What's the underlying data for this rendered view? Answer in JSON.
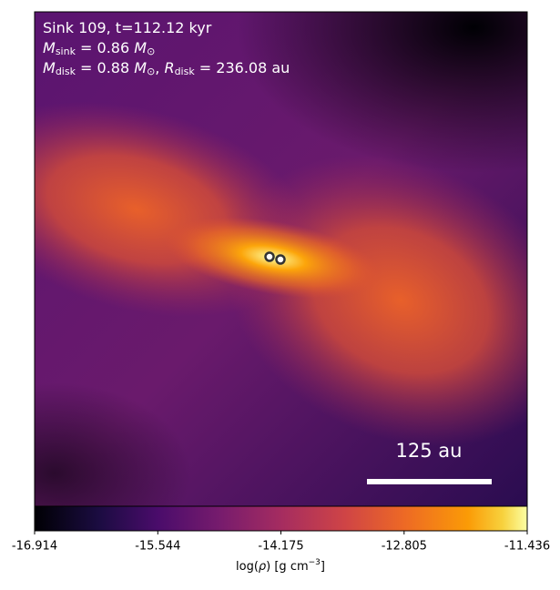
{
  "chart_data": {
    "type": "image",
    "annotation_lines": [
      [
        "Sink 109, t=112.12 kyr"
      ],
      [
        "M",
        "sink",
        " = 0.86 ",
        "M",
        "⊙"
      ],
      [
        "M",
        "disk",
        " = 0.88 ",
        "M",
        "⊙",
        ", ",
        "R",
        "disk",
        " = 236.08 au"
      ]
    ],
    "scale_bar_label": "125 au",
    "colorbar": {
      "label": [
        "log(",
        "ρ",
        ") [g cm",
        "−3",
        "]"
      ],
      "clim": [
        -16.914,
        -11.436
      ],
      "ticks": [
        -16.914,
        -15.544,
        -14.175,
        -12.805,
        -11.436
      ],
      "colormap": "inferno"
    }
  }
}
